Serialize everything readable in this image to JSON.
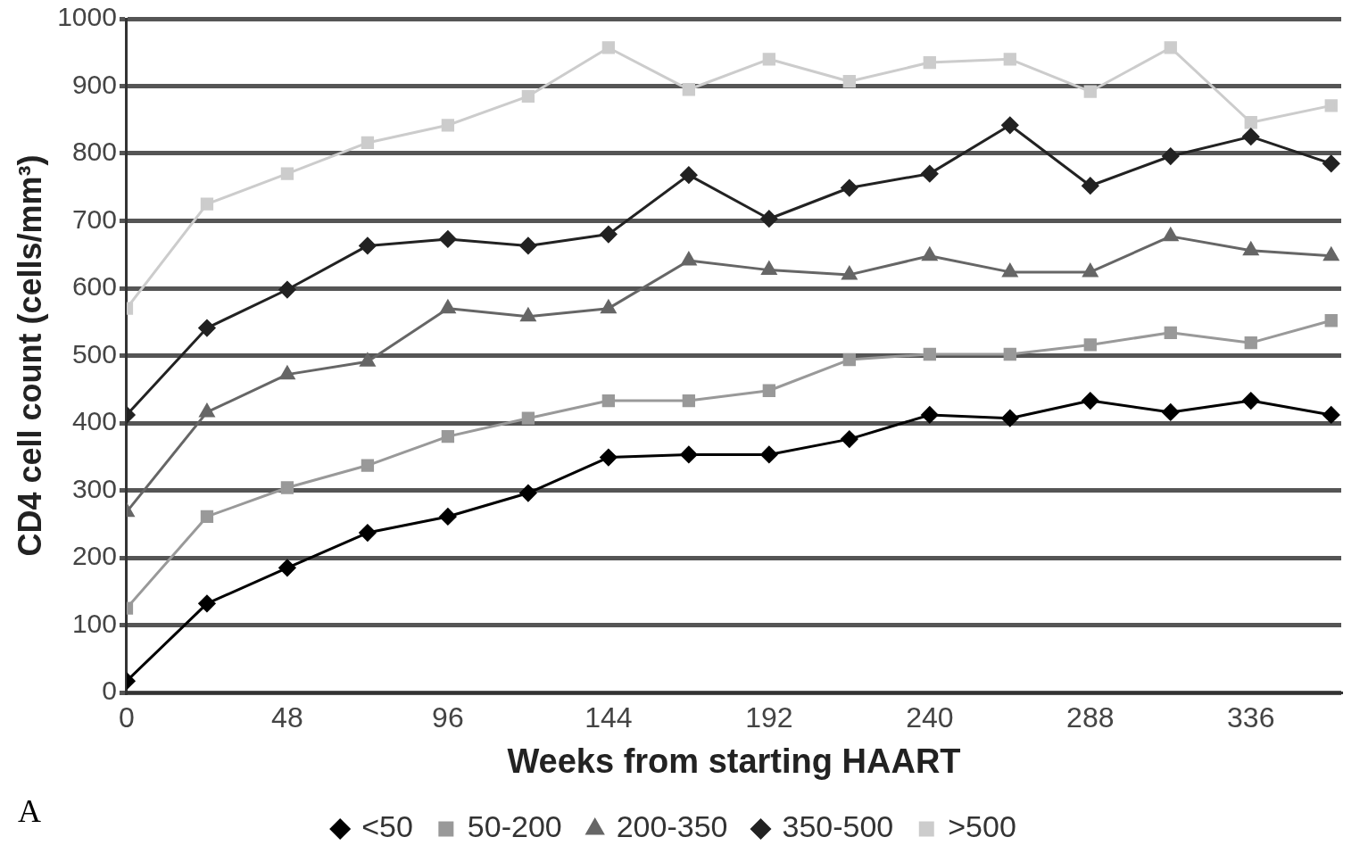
{
  "chart_data": {
    "type": "line",
    "xlabel": "Weeks from starting HAART",
    "ylabel": "CD4 cell count (cells/mm³)",
    "annotations": [
      "A"
    ],
    "x": [
      0,
      24,
      48,
      72,
      96,
      120,
      144,
      168,
      192,
      216,
      240,
      264,
      288,
      312,
      336,
      360
    ],
    "xlim": [
      0,
      363
    ],
    "xticks": [
      0,
      48,
      96,
      144,
      192,
      240,
      288,
      336
    ],
    "ylim": [
      0,
      1000
    ],
    "yticks": [
      0,
      100,
      200,
      300,
      400,
      500,
      600,
      700,
      800,
      900,
      1000
    ],
    "grid": "y",
    "legend": "bottom",
    "line_style": "solid",
    "series": [
      {
        "name": "<50",
        "color": "#000000",
        "marker": "diamond",
        "values": [
          17,
          132,
          185,
          237,
          261,
          296,
          349,
          353,
          353,
          376,
          412,
          407,
          433,
          416,
          433,
          412
        ]
      },
      {
        "name": "50-200",
        "color": "#999999",
        "marker": "square",
        "values": [
          125,
          261,
          304,
          337,
          380,
          407,
          433,
          433,
          448,
          494,
          502,
          502,
          516,
          534,
          519,
          552
        ]
      },
      {
        "name": "200-350",
        "color": "#666666",
        "marker": "triangle",
        "values": [
          268,
          416,
          472,
          491,
          570,
          558,
          570,
          641,
          627,
          620,
          648,
          624,
          624,
          677,
          656,
          648
        ]
      },
      {
        "name": "350-500",
        "color": "#222222",
        "marker": "diamond",
        "values": [
          412,
          541,
          598,
          663,
          673,
          663,
          680,
          768,
          703,
          749,
          770,
          842,
          752,
          796,
          825,
          785
        ]
      },
      {
        "name": ">500",
        "color": "#cccccc",
        "marker": "square",
        "values": [
          570,
          725,
          770,
          816,
          842,
          885,
          957,
          895,
          940,
          907,
          935,
          940,
          892,
          957,
          846,
          871
        ]
      }
    ]
  }
}
